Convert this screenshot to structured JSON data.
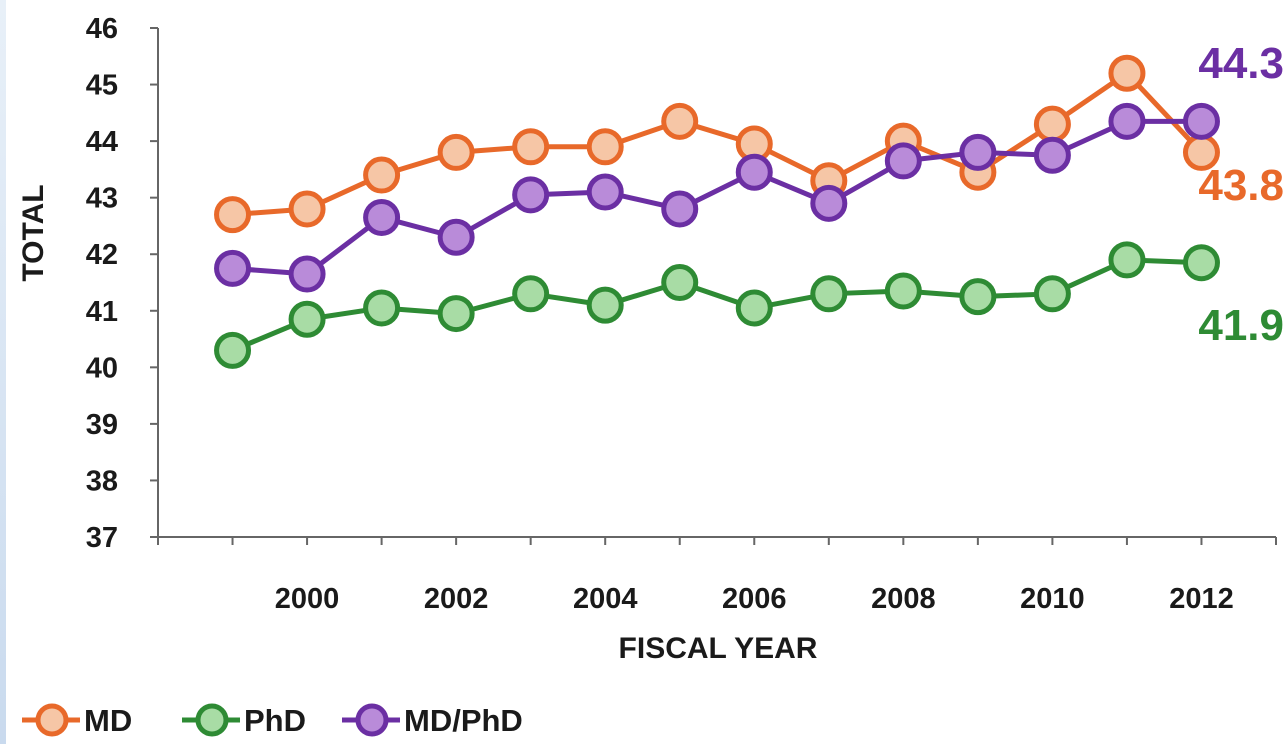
{
  "chart_data": {
    "type": "line",
    "title": "",
    "xlabel": "FISCAL YEAR",
    "ylabel": "TOTAL",
    "x": [
      1999,
      2000,
      2001,
      2002,
      2003,
      2004,
      2005,
      2006,
      2007,
      2008,
      2009,
      2010,
      2011,
      2012
    ],
    "x_ticks": [
      "2000",
      "2002",
      "2004",
      "2006",
      "2008",
      "2010",
      "2012"
    ],
    "y_ticks": [
      "37",
      "38",
      "39",
      "40",
      "41",
      "42",
      "43",
      "44",
      "45",
      "46"
    ],
    "xlim": [
      1998,
      2013
    ],
    "ylim": [
      37,
      46
    ],
    "grid": false,
    "legend_position": "bottom-left",
    "series": [
      {
        "name": "MD",
        "color": "#e8692a",
        "fill": "#f6c6a6",
        "values": [
          42.7,
          42.8,
          43.4,
          43.8,
          43.9,
          43.9,
          44.35,
          43.95,
          43.3,
          44.0,
          43.45,
          44.3,
          45.2,
          43.8
        ],
        "end_label": "43.8"
      },
      {
        "name": "PhD",
        "color": "#2e8b34",
        "fill": "#a8dca5",
        "values": [
          40.3,
          40.85,
          41.05,
          40.95,
          41.3,
          41.1,
          41.5,
          41.05,
          41.3,
          41.35,
          41.25,
          41.3,
          41.9,
          41.85
        ],
        "end_label": "41.9"
      },
      {
        "name": "MD/PhD",
        "color": "#6b2fa3",
        "fill": "#b98bd9",
        "values": [
          41.75,
          41.65,
          42.65,
          42.3,
          43.05,
          43.1,
          42.8,
          43.45,
          42.9,
          43.65,
          43.8,
          43.75,
          44.35,
          44.35
        ],
        "end_label": "44.3"
      }
    ]
  }
}
